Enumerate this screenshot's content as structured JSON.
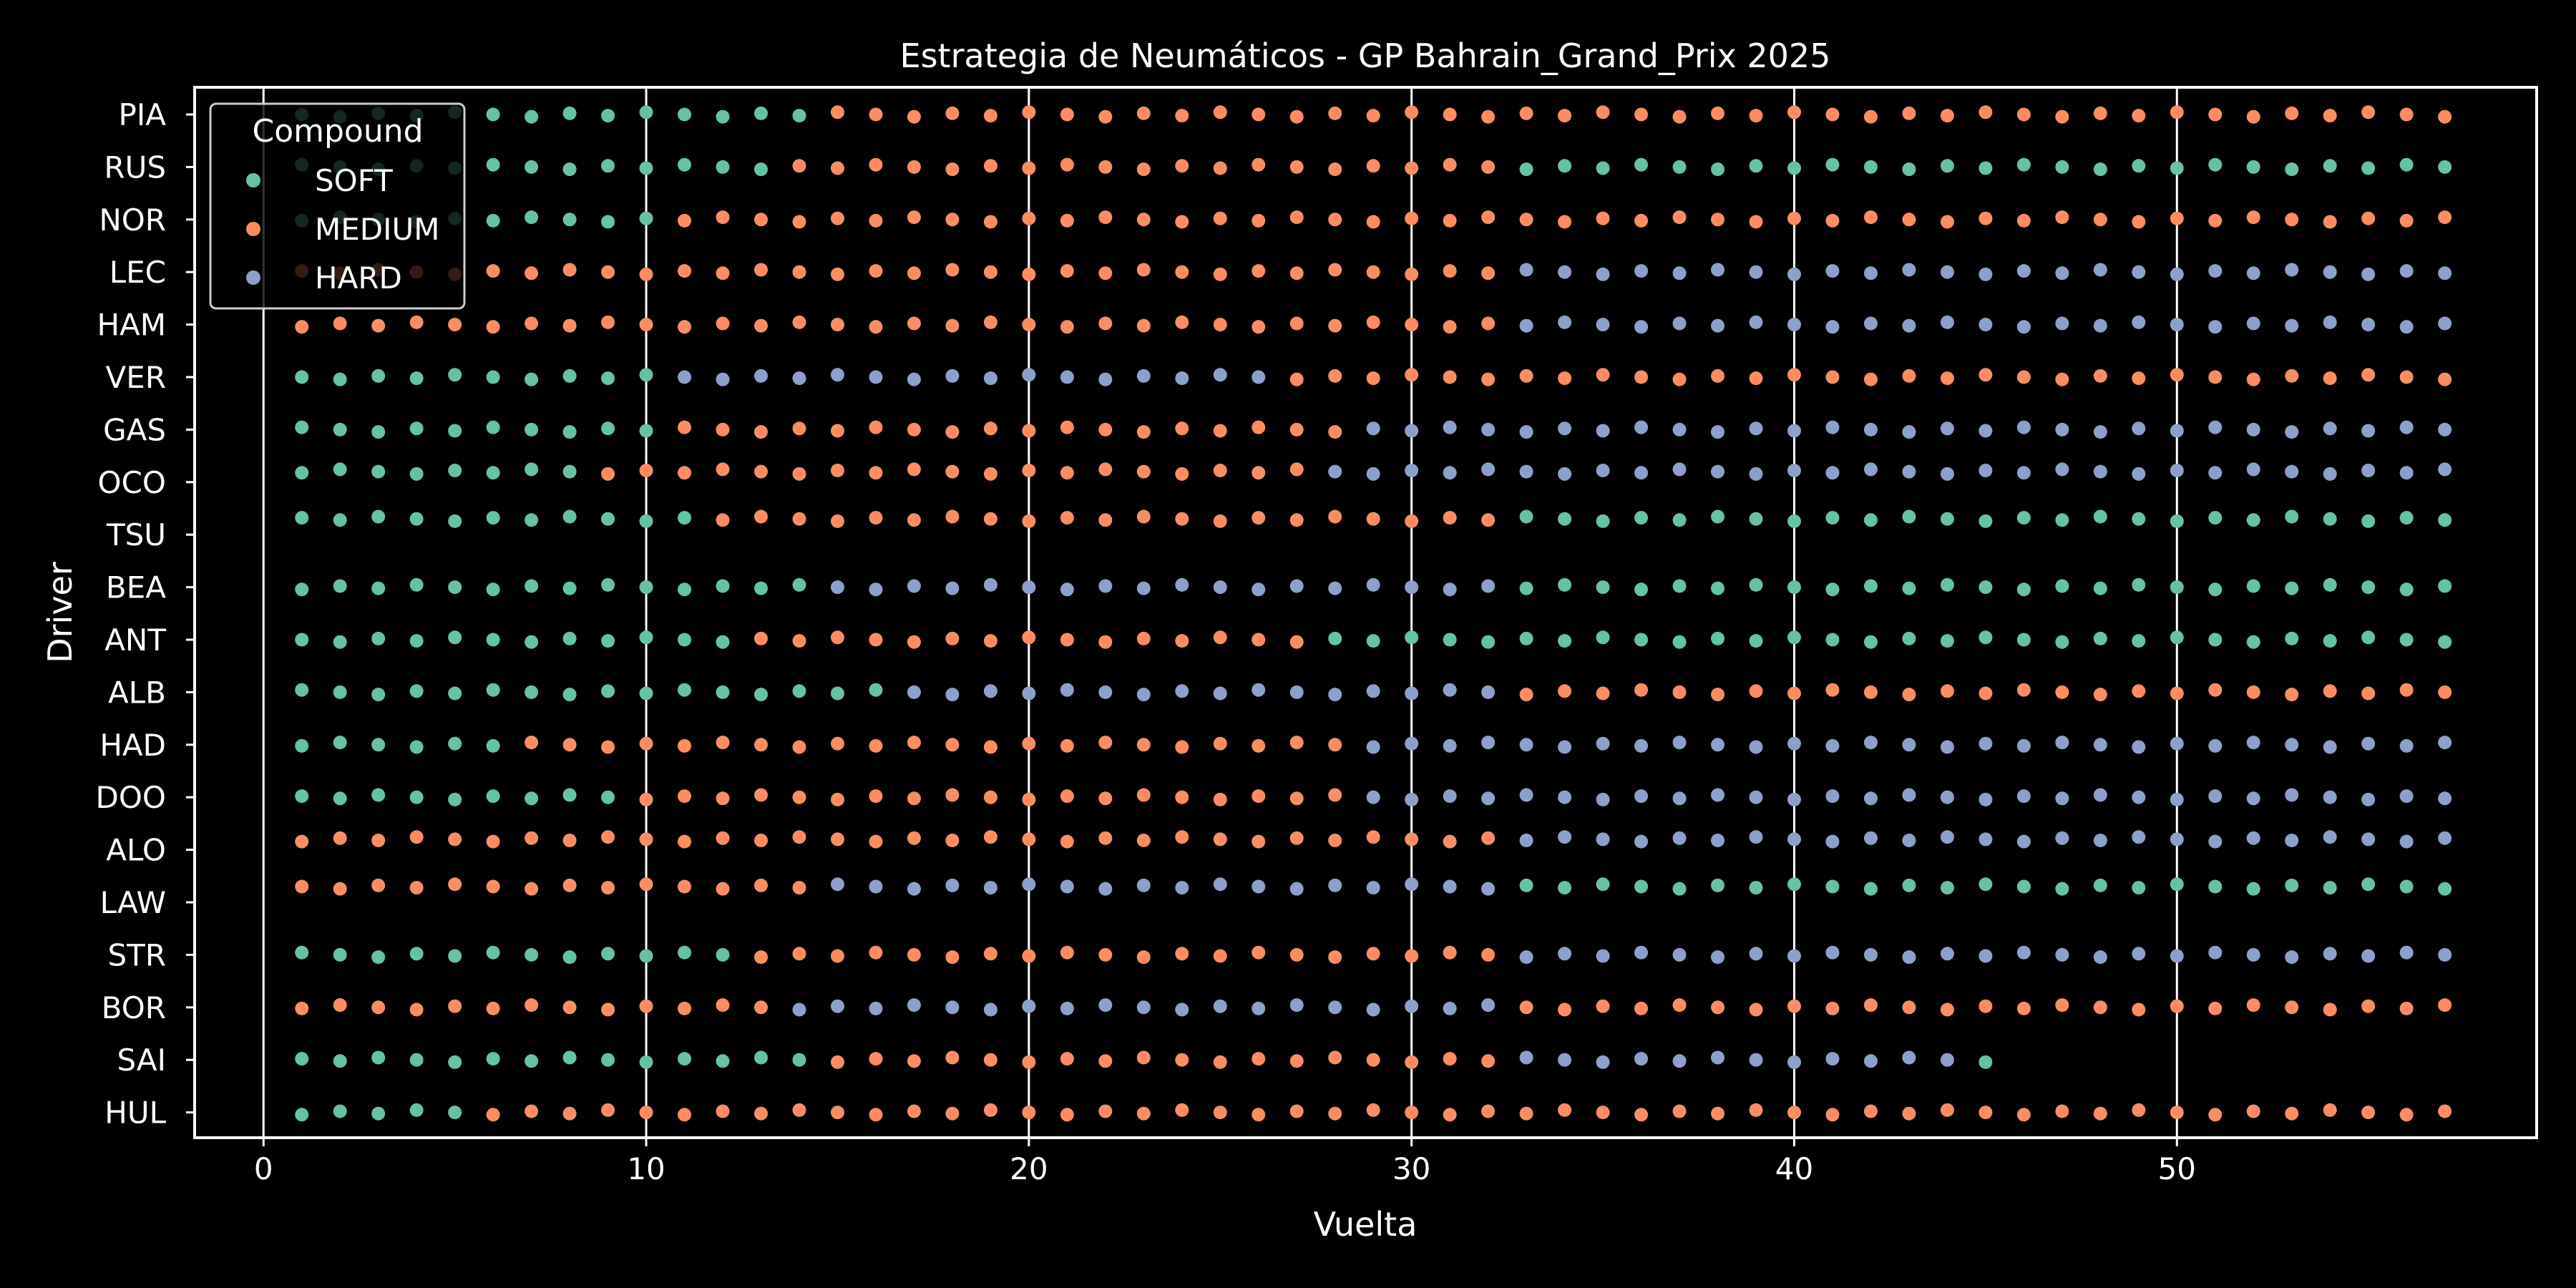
{
  "chart_data": {
    "type": "scatter",
    "title": "Estrategia de Neumáticos - GP Bahrain_Grand_Prix 2025",
    "xlabel": "Vuelta",
    "ylabel": "Driver",
    "xlim": [
      -1.8,
      59.4
    ],
    "x_ticks": [
      0,
      10,
      20,
      30,
      40,
      50
    ],
    "grid": "vertical lines at x ticks",
    "legend": {
      "title": "Compound",
      "placement": "top-left",
      "entries": [
        {
          "label": "SOFT",
          "color": "#66c2a5"
        },
        {
          "label": "MEDIUM",
          "color": "#fc8d62"
        },
        {
          "label": "HARD",
          "color": "#8da0cb"
        }
      ]
    },
    "drivers": [
      "PIA",
      "RUS",
      "NOR",
      "LEC",
      "HAM",
      "VER",
      "GAS",
      "OCO",
      "TSU",
      "BEA",
      "ANT",
      "ALB",
      "HAD",
      "DOO",
      "ALO",
      "LAW",
      "STR",
      "BOR",
      "SAI",
      "HUL"
    ],
    "stints": {
      "PIA": [
        {
          "compound": "SOFT",
          "from": 1,
          "to": 14
        },
        {
          "compound": "MEDIUM",
          "from": 15,
          "to": 57
        }
      ],
      "RUS": [
        {
          "compound": "SOFT",
          "from": 1,
          "to": 13
        },
        {
          "compound": "MEDIUM",
          "from": 14,
          "to": 32
        },
        {
          "compound": "SOFT",
          "from": 33,
          "to": 57
        }
      ],
      "NOR": [
        {
          "compound": "SOFT",
          "from": 1,
          "to": 10
        },
        {
          "compound": "MEDIUM",
          "from": 11,
          "to": 57
        }
      ],
      "LEC": [
        {
          "compound": "MEDIUM",
          "from": 1,
          "to": 32
        },
        {
          "compound": "HARD",
          "from": 33,
          "to": 57
        }
      ],
      "HAM": [
        {
          "compound": "MEDIUM",
          "from": 1,
          "to": 32
        },
        {
          "compound": "HARD",
          "from": 33,
          "to": 57
        }
      ],
      "VER": [
        {
          "compound": "SOFT",
          "from": 1,
          "to": 10
        },
        {
          "compound": "HARD",
          "from": 11,
          "to": 26
        },
        {
          "compound": "MEDIUM",
          "from": 27,
          "to": 57
        }
      ],
      "GAS": [
        {
          "compound": "SOFT",
          "from": 1,
          "to": 10
        },
        {
          "compound": "MEDIUM",
          "from": 11,
          "to": 28
        },
        {
          "compound": "HARD",
          "from": 29,
          "to": 57
        }
      ],
      "OCO": [
        {
          "compound": "SOFT",
          "from": 1,
          "to": 8
        },
        {
          "compound": "MEDIUM",
          "from": 9,
          "to": 27
        },
        {
          "compound": "HARD",
          "from": 28,
          "to": 57
        }
      ],
      "TSU": [
        {
          "compound": "SOFT",
          "from": 1,
          "to": 11
        },
        {
          "compound": "MEDIUM",
          "from": 12,
          "to": 32
        },
        {
          "compound": "SOFT",
          "from": 33,
          "to": 57
        }
      ],
      "BEA": [
        {
          "compound": "SOFT",
          "from": 1,
          "to": 14
        },
        {
          "compound": "HARD",
          "from": 15,
          "to": 32
        },
        {
          "compound": "SOFT",
          "from": 33,
          "to": 57
        }
      ],
      "ANT": [
        {
          "compound": "SOFT",
          "from": 1,
          "to": 12
        },
        {
          "compound": "MEDIUM",
          "from": 13,
          "to": 27
        },
        {
          "compound": "SOFT",
          "from": 28,
          "to": 57
        }
      ],
      "ALB": [
        {
          "compound": "SOFT",
          "from": 1,
          "to": 16
        },
        {
          "compound": "HARD",
          "from": 17,
          "to": 32
        },
        {
          "compound": "MEDIUM",
          "from": 33,
          "to": 57
        }
      ],
      "HAD": [
        {
          "compound": "SOFT",
          "from": 1,
          "to": 6
        },
        {
          "compound": "MEDIUM",
          "from": 7,
          "to": 28
        },
        {
          "compound": "HARD",
          "from": 29,
          "to": 57
        }
      ],
      "DOO": [
        {
          "compound": "SOFT",
          "from": 1,
          "to": 9
        },
        {
          "compound": "MEDIUM",
          "from": 10,
          "to": 28
        },
        {
          "compound": "HARD",
          "from": 29,
          "to": 57
        }
      ],
      "ALO": [
        {
          "compound": "MEDIUM",
          "from": 1,
          "to": 32
        },
        {
          "compound": "HARD",
          "from": 33,
          "to": 57
        }
      ],
      "LAW": [
        {
          "compound": "MEDIUM",
          "from": 1,
          "to": 14
        },
        {
          "compound": "HARD",
          "from": 15,
          "to": 32
        },
        {
          "compound": "SOFT",
          "from": 33,
          "to": 57
        }
      ],
      "STR": [
        {
          "compound": "SOFT",
          "from": 1,
          "to": 12
        },
        {
          "compound": "MEDIUM",
          "from": 13,
          "to": 32
        },
        {
          "compound": "HARD",
          "from": 33,
          "to": 57
        }
      ],
      "BOR": [
        {
          "compound": "MEDIUM",
          "from": 1,
          "to": 13
        },
        {
          "compound": "HARD",
          "from": 14,
          "to": 32
        },
        {
          "compound": "MEDIUM",
          "from": 33,
          "to": 57
        }
      ],
      "SAI": [
        {
          "compound": "SOFT",
          "from": 1,
          "to": 14
        },
        {
          "compound": "MEDIUM",
          "from": 15,
          "to": 32
        },
        {
          "compound": "HARD",
          "from": 33,
          "to": 44
        },
        {
          "compound": "SOFT",
          "from": 45,
          "to": 45
        }
      ],
      "HUL": [
        {
          "compound": "SOFT",
          "from": 1,
          "to": 5
        },
        {
          "compound": "MEDIUM",
          "from": 6,
          "to": 57
        }
      ]
    },
    "lane_offsets": {
      "OCO": -0.2,
      "TSU": -0.3,
      "ALO": -0.2,
      "LAW": -0.3
    }
  }
}
